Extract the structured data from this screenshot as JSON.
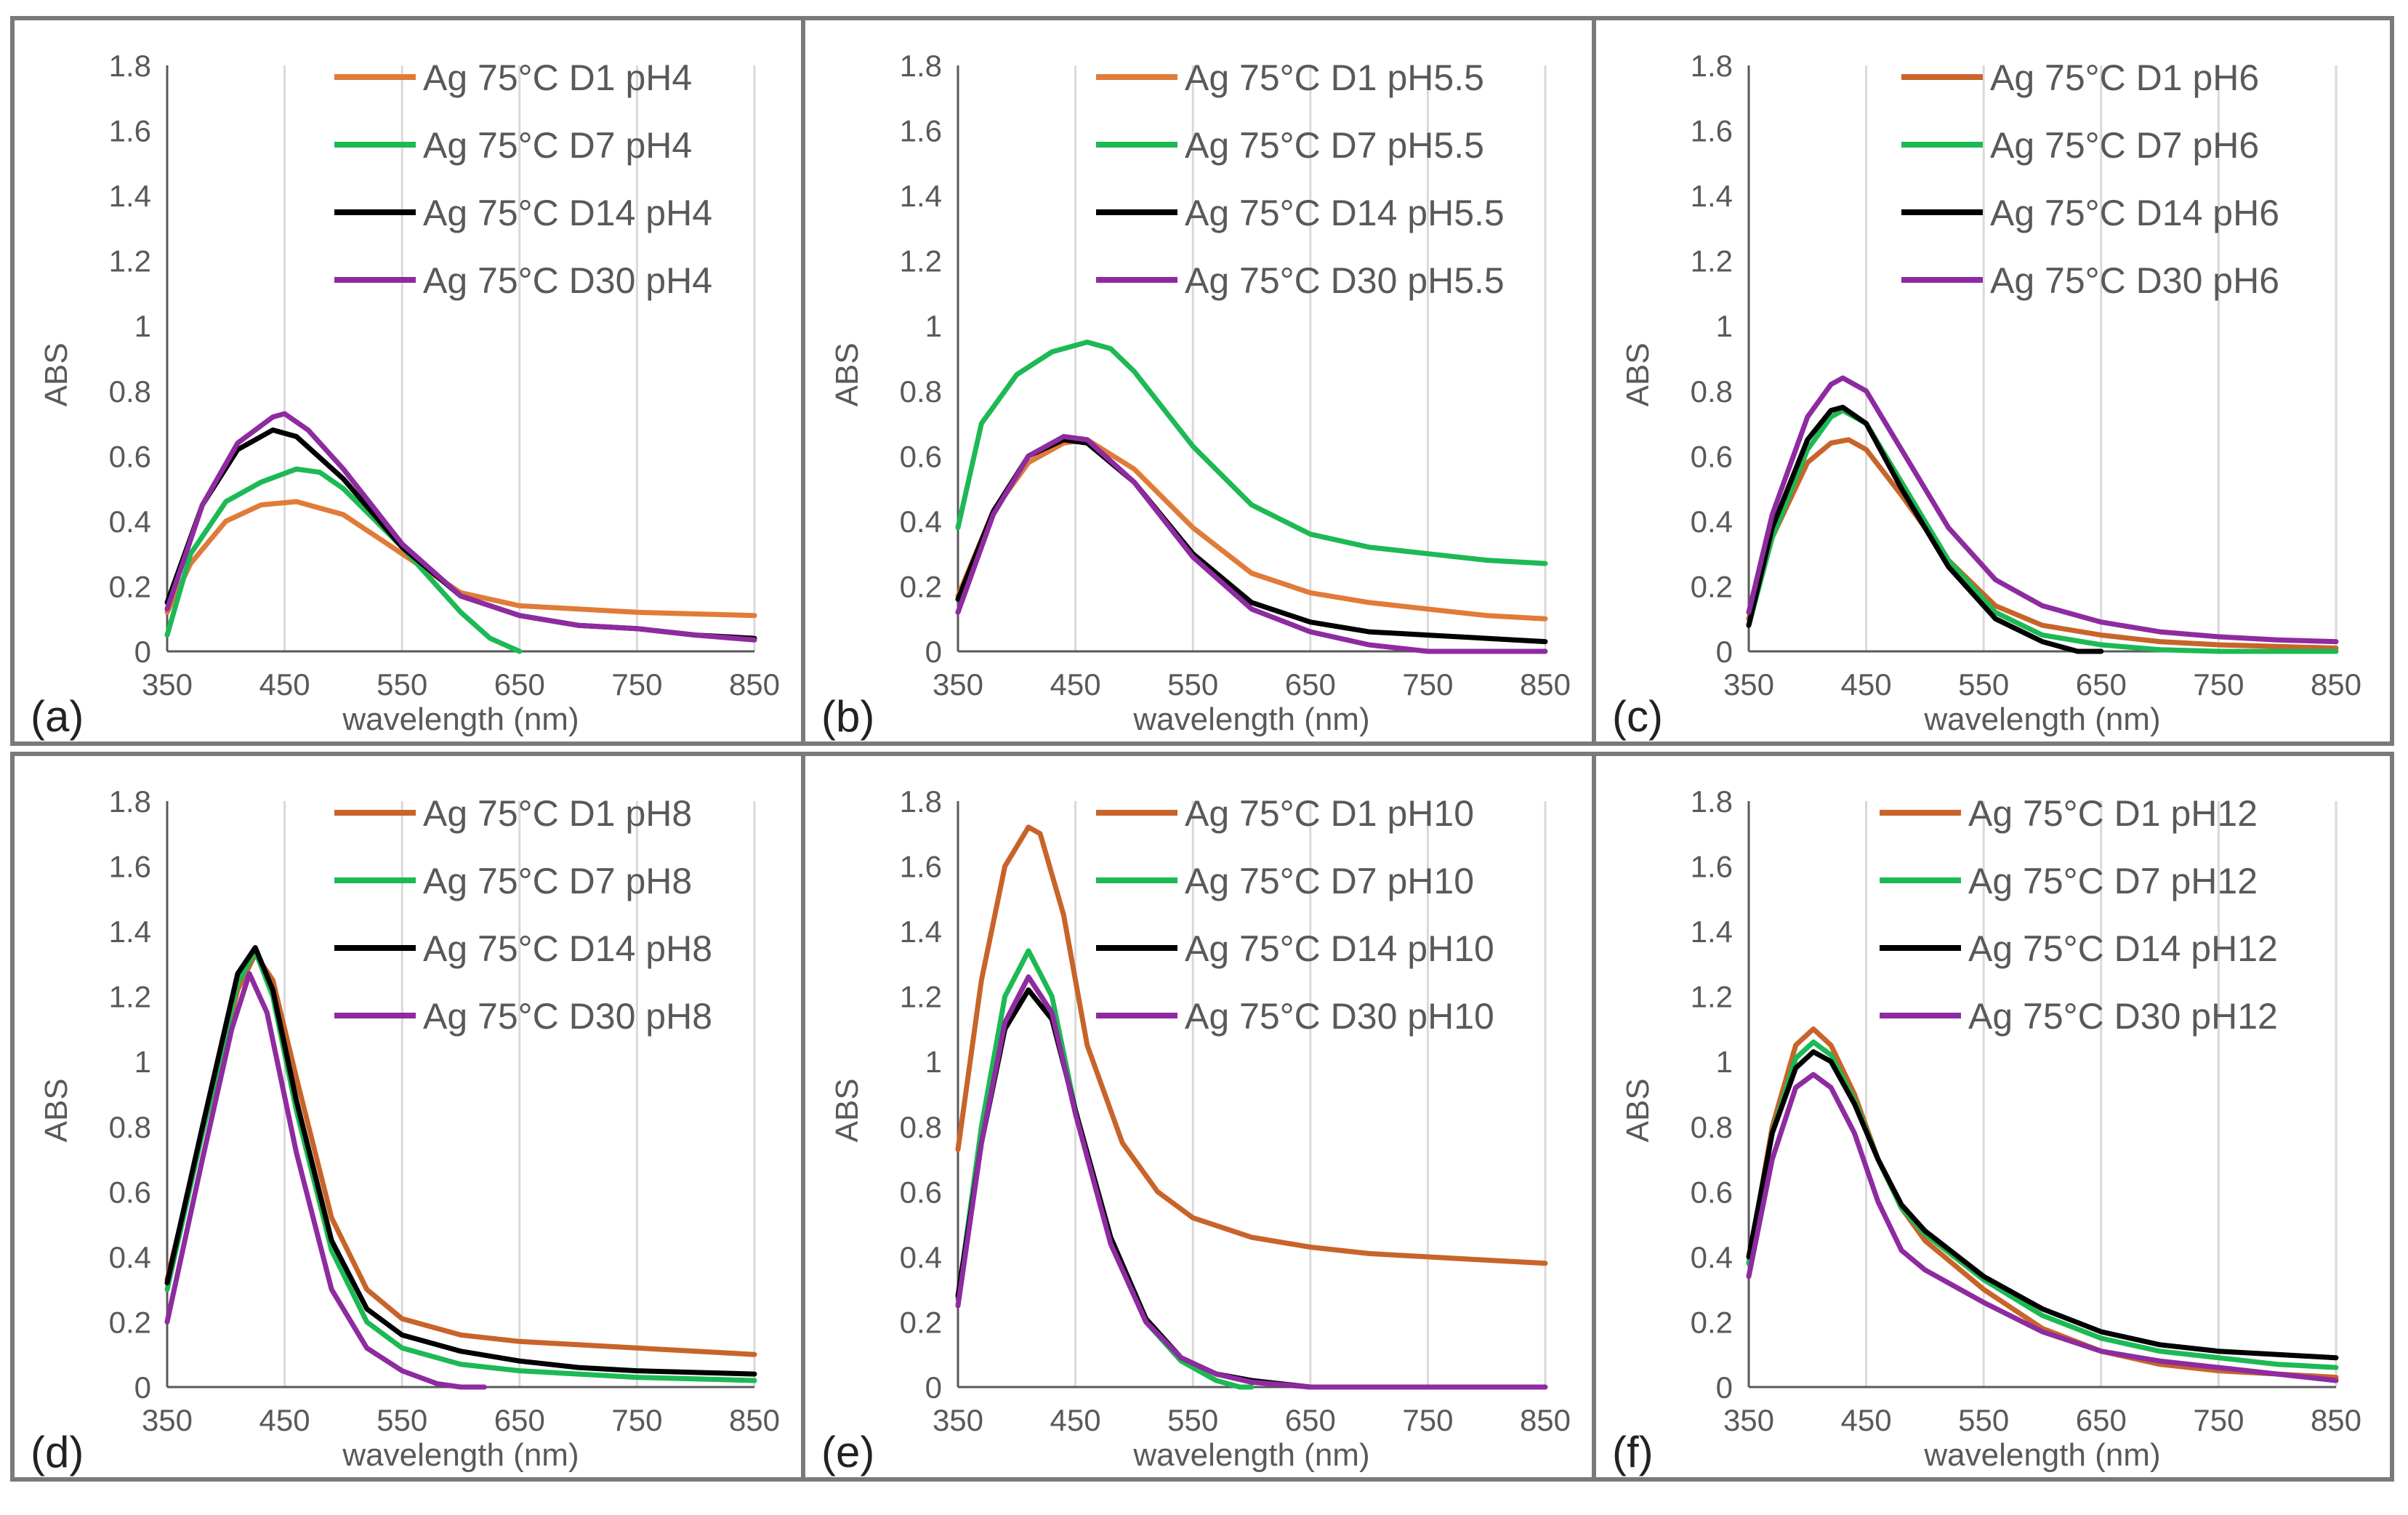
{
  "figure": {
    "colors": {
      "D1": "#e07b39",
      "D1_dark": "#c8642a",
      "D7": "#1db954",
      "D14": "#000000",
      "D30": "#8e2ba0",
      "grid": "#d9d9d9",
      "axis": "#595959",
      "border": "#7a7a7a"
    }
  },
  "chart_data": [
    {
      "type": "line",
      "panel_label": "(a)",
      "xlabel": "wavelength (nm)",
      "ylabel": "ABS",
      "xlim": [
        350,
        850
      ],
      "ylim": [
        0,
        1.8
      ],
      "xticks": [
        "350",
        "450",
        "550",
        "650",
        "750",
        "850"
      ],
      "yticks": [
        "0",
        "0.2",
        "0.4",
        "0.6",
        "0.8",
        "1",
        "1.2",
        "1.4",
        "1.6",
        "1.8"
      ],
      "legend_position": "top-right",
      "series": [
        {
          "name": "Ag 75°C D1 pH4",
          "color": "#e07b39",
          "x": [
            350,
            370,
            400,
            430,
            460,
            500,
            550,
            600,
            650,
            700,
            750,
            800,
            850
          ],
          "y": [
            0.12,
            0.27,
            0.4,
            0.45,
            0.46,
            0.42,
            0.3,
            0.18,
            0.14,
            0.13,
            0.12,
            0.115,
            0.11
          ]
        },
        {
          "name": "Ag 75°C D7 pH4",
          "color": "#1db954",
          "x": [
            350,
            370,
            400,
            430,
            460,
            480,
            500,
            550,
            600,
            625,
            650
          ],
          "y": [
            0.05,
            0.3,
            0.46,
            0.52,
            0.56,
            0.55,
            0.5,
            0.32,
            0.12,
            0.04,
            0.0
          ]
        },
        {
          "name": "Ag 75°C D14 pH4",
          "color": "#000000",
          "x": [
            350,
            380,
            410,
            440,
            460,
            500,
            550,
            600,
            650,
            700,
            750,
            800,
            850
          ],
          "y": [
            0.15,
            0.45,
            0.62,
            0.68,
            0.66,
            0.53,
            0.32,
            0.17,
            0.11,
            0.08,
            0.07,
            0.05,
            0.04
          ]
        },
        {
          "name": "Ag 75°C D30 pH4",
          "color": "#8e2ba0",
          "x": [
            350,
            380,
            410,
            440,
            450,
            470,
            500,
            550,
            600,
            650,
            700,
            750,
            800,
            850
          ],
          "y": [
            0.13,
            0.45,
            0.64,
            0.72,
            0.73,
            0.68,
            0.56,
            0.33,
            0.17,
            0.11,
            0.08,
            0.07,
            0.05,
            0.035
          ]
        }
      ]
    },
    {
      "type": "line",
      "panel_label": "(b)",
      "xlabel": "wavelength (nm)",
      "ylabel": "ABS",
      "xlim": [
        350,
        850
      ],
      "ylim": [
        0,
        1.8
      ],
      "xticks": [
        "350",
        "450",
        "550",
        "650",
        "750",
        "850"
      ],
      "yticks": [
        "0",
        "0.2",
        "0.4",
        "0.6",
        "0.8",
        "1",
        "1.2",
        "1.4",
        "1.6",
        "1.8"
      ],
      "legend_position": "top-right",
      "series": [
        {
          "name": "Ag 75°C D1 pH5.5",
          "color": "#e07b39",
          "x": [
            350,
            380,
            410,
            440,
            460,
            500,
            550,
            600,
            650,
            700,
            750,
            800,
            850
          ],
          "y": [
            0.17,
            0.43,
            0.58,
            0.64,
            0.65,
            0.56,
            0.38,
            0.24,
            0.18,
            0.15,
            0.13,
            0.11,
            0.1
          ]
        },
        {
          "name": "Ag 75°C D7 pH5.5",
          "color": "#1db954",
          "x": [
            350,
            370,
            400,
            430,
            460,
            480,
            500,
            550,
            600,
            650,
            700,
            750,
            800,
            850
          ],
          "y": [
            0.38,
            0.7,
            0.85,
            0.92,
            0.95,
            0.93,
            0.86,
            0.63,
            0.45,
            0.36,
            0.32,
            0.3,
            0.28,
            0.27
          ]
        },
        {
          "name": "Ag 75°C D14 pH5.5",
          "color": "#000000",
          "x": [
            350,
            380,
            410,
            440,
            460,
            500,
            550,
            600,
            650,
            700,
            750,
            800,
            850
          ],
          "y": [
            0.16,
            0.43,
            0.6,
            0.65,
            0.64,
            0.52,
            0.3,
            0.15,
            0.09,
            0.06,
            0.05,
            0.04,
            0.03
          ]
        },
        {
          "name": "Ag 75°C D30 pH5.5",
          "color": "#8e2ba0",
          "x": [
            350,
            380,
            410,
            440,
            460,
            500,
            550,
            600,
            650,
            700,
            750,
            800,
            850
          ],
          "y": [
            0.12,
            0.42,
            0.6,
            0.66,
            0.65,
            0.52,
            0.29,
            0.13,
            0.06,
            0.02,
            0.0,
            0.0,
            0.0
          ]
        }
      ]
    },
    {
      "type": "line",
      "panel_label": "(c)",
      "xlabel": "wavelength (nm)",
      "ylabel": "ABS",
      "xlim": [
        350,
        850
      ],
      "ylim": [
        0,
        1.8
      ],
      "xticks": [
        "350",
        "450",
        "550",
        "650",
        "750",
        "850"
      ],
      "yticks": [
        "0",
        "0.2",
        "0.4",
        "0.6",
        "0.8",
        "1",
        "1.2",
        "1.4",
        "1.6",
        "1.8"
      ],
      "legend_position": "top-right",
      "series": [
        {
          "name": "Ag 75°C D1 pH6",
          "color": "#c8642a",
          "x": [
            350,
            370,
            400,
            420,
            435,
            450,
            480,
            520,
            560,
            600,
            650,
            700,
            750,
            800,
            850
          ],
          "y": [
            0.1,
            0.35,
            0.58,
            0.64,
            0.65,
            0.62,
            0.48,
            0.28,
            0.14,
            0.08,
            0.05,
            0.03,
            0.02,
            0.015,
            0.01
          ]
        },
        {
          "name": "Ag 75°C D7 pH6",
          "color": "#1db954",
          "x": [
            350,
            370,
            400,
            420,
            430,
            450,
            480,
            520,
            560,
            600,
            650,
            700,
            750,
            800,
            850
          ],
          "y": [
            0.08,
            0.35,
            0.62,
            0.72,
            0.74,
            0.7,
            0.52,
            0.28,
            0.12,
            0.05,
            0.02,
            0.005,
            0.0,
            0.0,
            0.0
          ]
        },
        {
          "name": "Ag 75°C D14 pH6",
          "color": "#000000",
          "x": [
            350,
            370,
            400,
            420,
            430,
            450,
            480,
            520,
            560,
            600,
            630,
            650
          ],
          "y": [
            0.08,
            0.38,
            0.65,
            0.74,
            0.75,
            0.7,
            0.5,
            0.26,
            0.1,
            0.03,
            0.0,
            0.0
          ]
        },
        {
          "name": "Ag 75°C D30 pH6",
          "color": "#8e2ba0",
          "x": [
            350,
            370,
            400,
            420,
            430,
            450,
            480,
            520,
            560,
            600,
            650,
            700,
            750,
            800,
            850
          ],
          "y": [
            0.12,
            0.42,
            0.72,
            0.82,
            0.84,
            0.8,
            0.62,
            0.38,
            0.22,
            0.14,
            0.09,
            0.06,
            0.045,
            0.035,
            0.03
          ]
        }
      ]
    },
    {
      "type": "line",
      "panel_label": "(d)",
      "xlabel": "wavelength (nm)",
      "ylabel": "ABS",
      "xlim": [
        350,
        850
      ],
      "ylim": [
        0,
        1.8
      ],
      "xticks": [
        "350",
        "450",
        "550",
        "650",
        "750",
        "850"
      ],
      "yticks": [
        "0",
        "0.2",
        "0.4",
        "0.6",
        "0.8",
        "1",
        "1.2",
        "1.4",
        "1.6",
        "1.8"
      ],
      "legend_position": "top-right",
      "series": [
        {
          "name": "Ag 75°C D1 pH8",
          "color": "#c8642a",
          "x": [
            350,
            380,
            410,
            425,
            440,
            460,
            490,
            520,
            550,
            600,
            650,
            700,
            750,
            800,
            850
          ],
          "y": [
            0.33,
            0.78,
            1.22,
            1.33,
            1.25,
            0.95,
            0.52,
            0.3,
            0.21,
            0.16,
            0.14,
            0.13,
            0.12,
            0.11,
            0.1
          ]
        },
        {
          "name": "Ag 75°C D7 pH8",
          "color": "#1db954",
          "x": [
            350,
            380,
            410,
            425,
            440,
            460,
            490,
            520,
            550,
            600,
            650,
            700,
            750,
            800,
            850
          ],
          "y": [
            0.3,
            0.78,
            1.24,
            1.34,
            1.2,
            0.85,
            0.42,
            0.2,
            0.12,
            0.07,
            0.05,
            0.04,
            0.03,
            0.025,
            0.02
          ]
        },
        {
          "name": "Ag 75°C D14 pH8",
          "color": "#000000",
          "x": [
            350,
            380,
            410,
            425,
            440,
            460,
            490,
            520,
            550,
            600,
            650,
            700,
            750,
            800,
            850
          ],
          "y": [
            0.32,
            0.8,
            1.27,
            1.35,
            1.22,
            0.88,
            0.45,
            0.24,
            0.16,
            0.11,
            0.08,
            0.06,
            0.05,
            0.045,
            0.04
          ]
        },
        {
          "name": "Ag 75°C D30 pH8",
          "color": "#8e2ba0",
          "x": [
            350,
            380,
            405,
            420,
            435,
            460,
            490,
            520,
            550,
            580,
            600,
            620
          ],
          "y": [
            0.2,
            0.7,
            1.1,
            1.27,
            1.15,
            0.72,
            0.3,
            0.12,
            0.05,
            0.01,
            0.0,
            0.0
          ]
        }
      ]
    },
    {
      "type": "line",
      "panel_label": "(e)",
      "xlabel": "wavelength (nm)",
      "ylabel": "ABS",
      "xlim": [
        350,
        850
      ],
      "ylim": [
        0,
        1.8
      ],
      "xticks": [
        "350",
        "450",
        "550",
        "650",
        "750",
        "850"
      ],
      "yticks": [
        "0",
        "0.2",
        "0.4",
        "0.6",
        "0.8",
        "1",
        "1.2",
        "1.4",
        "1.6",
        "1.8"
      ],
      "legend_position": "top-right",
      "series": [
        {
          "name": "Ag 75°C D1 pH10",
          "color": "#c8642a",
          "x": [
            350,
            370,
            390,
            410,
            420,
            440,
            460,
            490,
            520,
            550,
            600,
            650,
            700,
            750,
            800,
            850
          ],
          "y": [
            0.73,
            1.25,
            1.6,
            1.72,
            1.7,
            1.45,
            1.05,
            0.75,
            0.6,
            0.52,
            0.46,
            0.43,
            0.41,
            0.4,
            0.39,
            0.38
          ]
        },
        {
          "name": "Ag 75°C D7 pH10",
          "color": "#1db954",
          "x": [
            350,
            370,
            390,
            410,
            430,
            450,
            480,
            510,
            540,
            570,
            590,
            600
          ],
          "y": [
            0.27,
            0.8,
            1.2,
            1.34,
            1.2,
            0.85,
            0.45,
            0.2,
            0.08,
            0.02,
            0.0,
            0.0
          ]
        },
        {
          "name": "Ag 75°C D14 pH10",
          "color": "#000000",
          "x": [
            350,
            370,
            390,
            410,
            430,
            450,
            480,
            510,
            540,
            570,
            600,
            650,
            700
          ],
          "y": [
            0.28,
            0.75,
            1.1,
            1.22,
            1.13,
            0.85,
            0.46,
            0.21,
            0.09,
            0.04,
            0.02,
            0.0,
            0.0
          ]
        },
        {
          "name": "Ag 75°C D30 pH10",
          "color": "#8e2ba0",
          "x": [
            350,
            370,
            390,
            410,
            430,
            450,
            480,
            510,
            540,
            570,
            600,
            650,
            700,
            750,
            800,
            850
          ],
          "y": [
            0.25,
            0.75,
            1.12,
            1.26,
            1.15,
            0.84,
            0.44,
            0.2,
            0.09,
            0.04,
            0.015,
            0.0,
            0.0,
            0.0,
            0.0,
            0.0
          ]
        }
      ]
    },
    {
      "type": "line",
      "panel_label": "(f)",
      "xlabel": "wavelength (nm)",
      "ylabel": "ABS",
      "xlim": [
        350,
        850
      ],
      "ylim": [
        0,
        1.8
      ],
      "xticks": [
        "350",
        "450",
        "550",
        "650",
        "750",
        "850"
      ],
      "yticks": [
        "0",
        "0.2",
        "0.4",
        "0.6",
        "0.8",
        "1",
        "1.2",
        "1.4",
        "1.6",
        "1.8"
      ],
      "legend_position": "top-right",
      "series": [
        {
          "name": "Ag 75°C D1 pH12",
          "color": "#c8642a",
          "x": [
            350,
            370,
            390,
            405,
            420,
            440,
            460,
            480,
            500,
            550,
            600,
            650,
            700,
            750,
            800,
            850
          ],
          "y": [
            0.38,
            0.8,
            1.05,
            1.1,
            1.05,
            0.9,
            0.7,
            0.55,
            0.45,
            0.3,
            0.18,
            0.11,
            0.07,
            0.05,
            0.04,
            0.03
          ]
        },
        {
          "name": "Ag 75°C D7 pH12",
          "color": "#1db954",
          "x": [
            350,
            370,
            390,
            405,
            420,
            440,
            460,
            480,
            500,
            550,
            600,
            650,
            700,
            750,
            800,
            850
          ],
          "y": [
            0.38,
            0.78,
            1.01,
            1.06,
            1.02,
            0.88,
            0.7,
            0.55,
            0.47,
            0.33,
            0.22,
            0.15,
            0.11,
            0.09,
            0.07,
            0.06
          ]
        },
        {
          "name": "Ag 75°C D14 pH12",
          "color": "#000000",
          "x": [
            350,
            370,
            390,
            405,
            420,
            440,
            460,
            480,
            500,
            550,
            600,
            650,
            700,
            750,
            800,
            850
          ],
          "y": [
            0.4,
            0.78,
            0.98,
            1.03,
            1.0,
            0.87,
            0.7,
            0.56,
            0.48,
            0.34,
            0.24,
            0.17,
            0.13,
            0.11,
            0.1,
            0.09
          ]
        },
        {
          "name": "Ag 75°C D30 pH12",
          "color": "#8e2ba0",
          "x": [
            350,
            370,
            390,
            405,
            420,
            440,
            460,
            480,
            500,
            550,
            600,
            650,
            700,
            750,
            800,
            850
          ],
          "y": [
            0.34,
            0.7,
            0.92,
            0.96,
            0.92,
            0.78,
            0.57,
            0.42,
            0.36,
            0.26,
            0.17,
            0.11,
            0.08,
            0.06,
            0.04,
            0.02
          ]
        }
      ]
    }
  ]
}
